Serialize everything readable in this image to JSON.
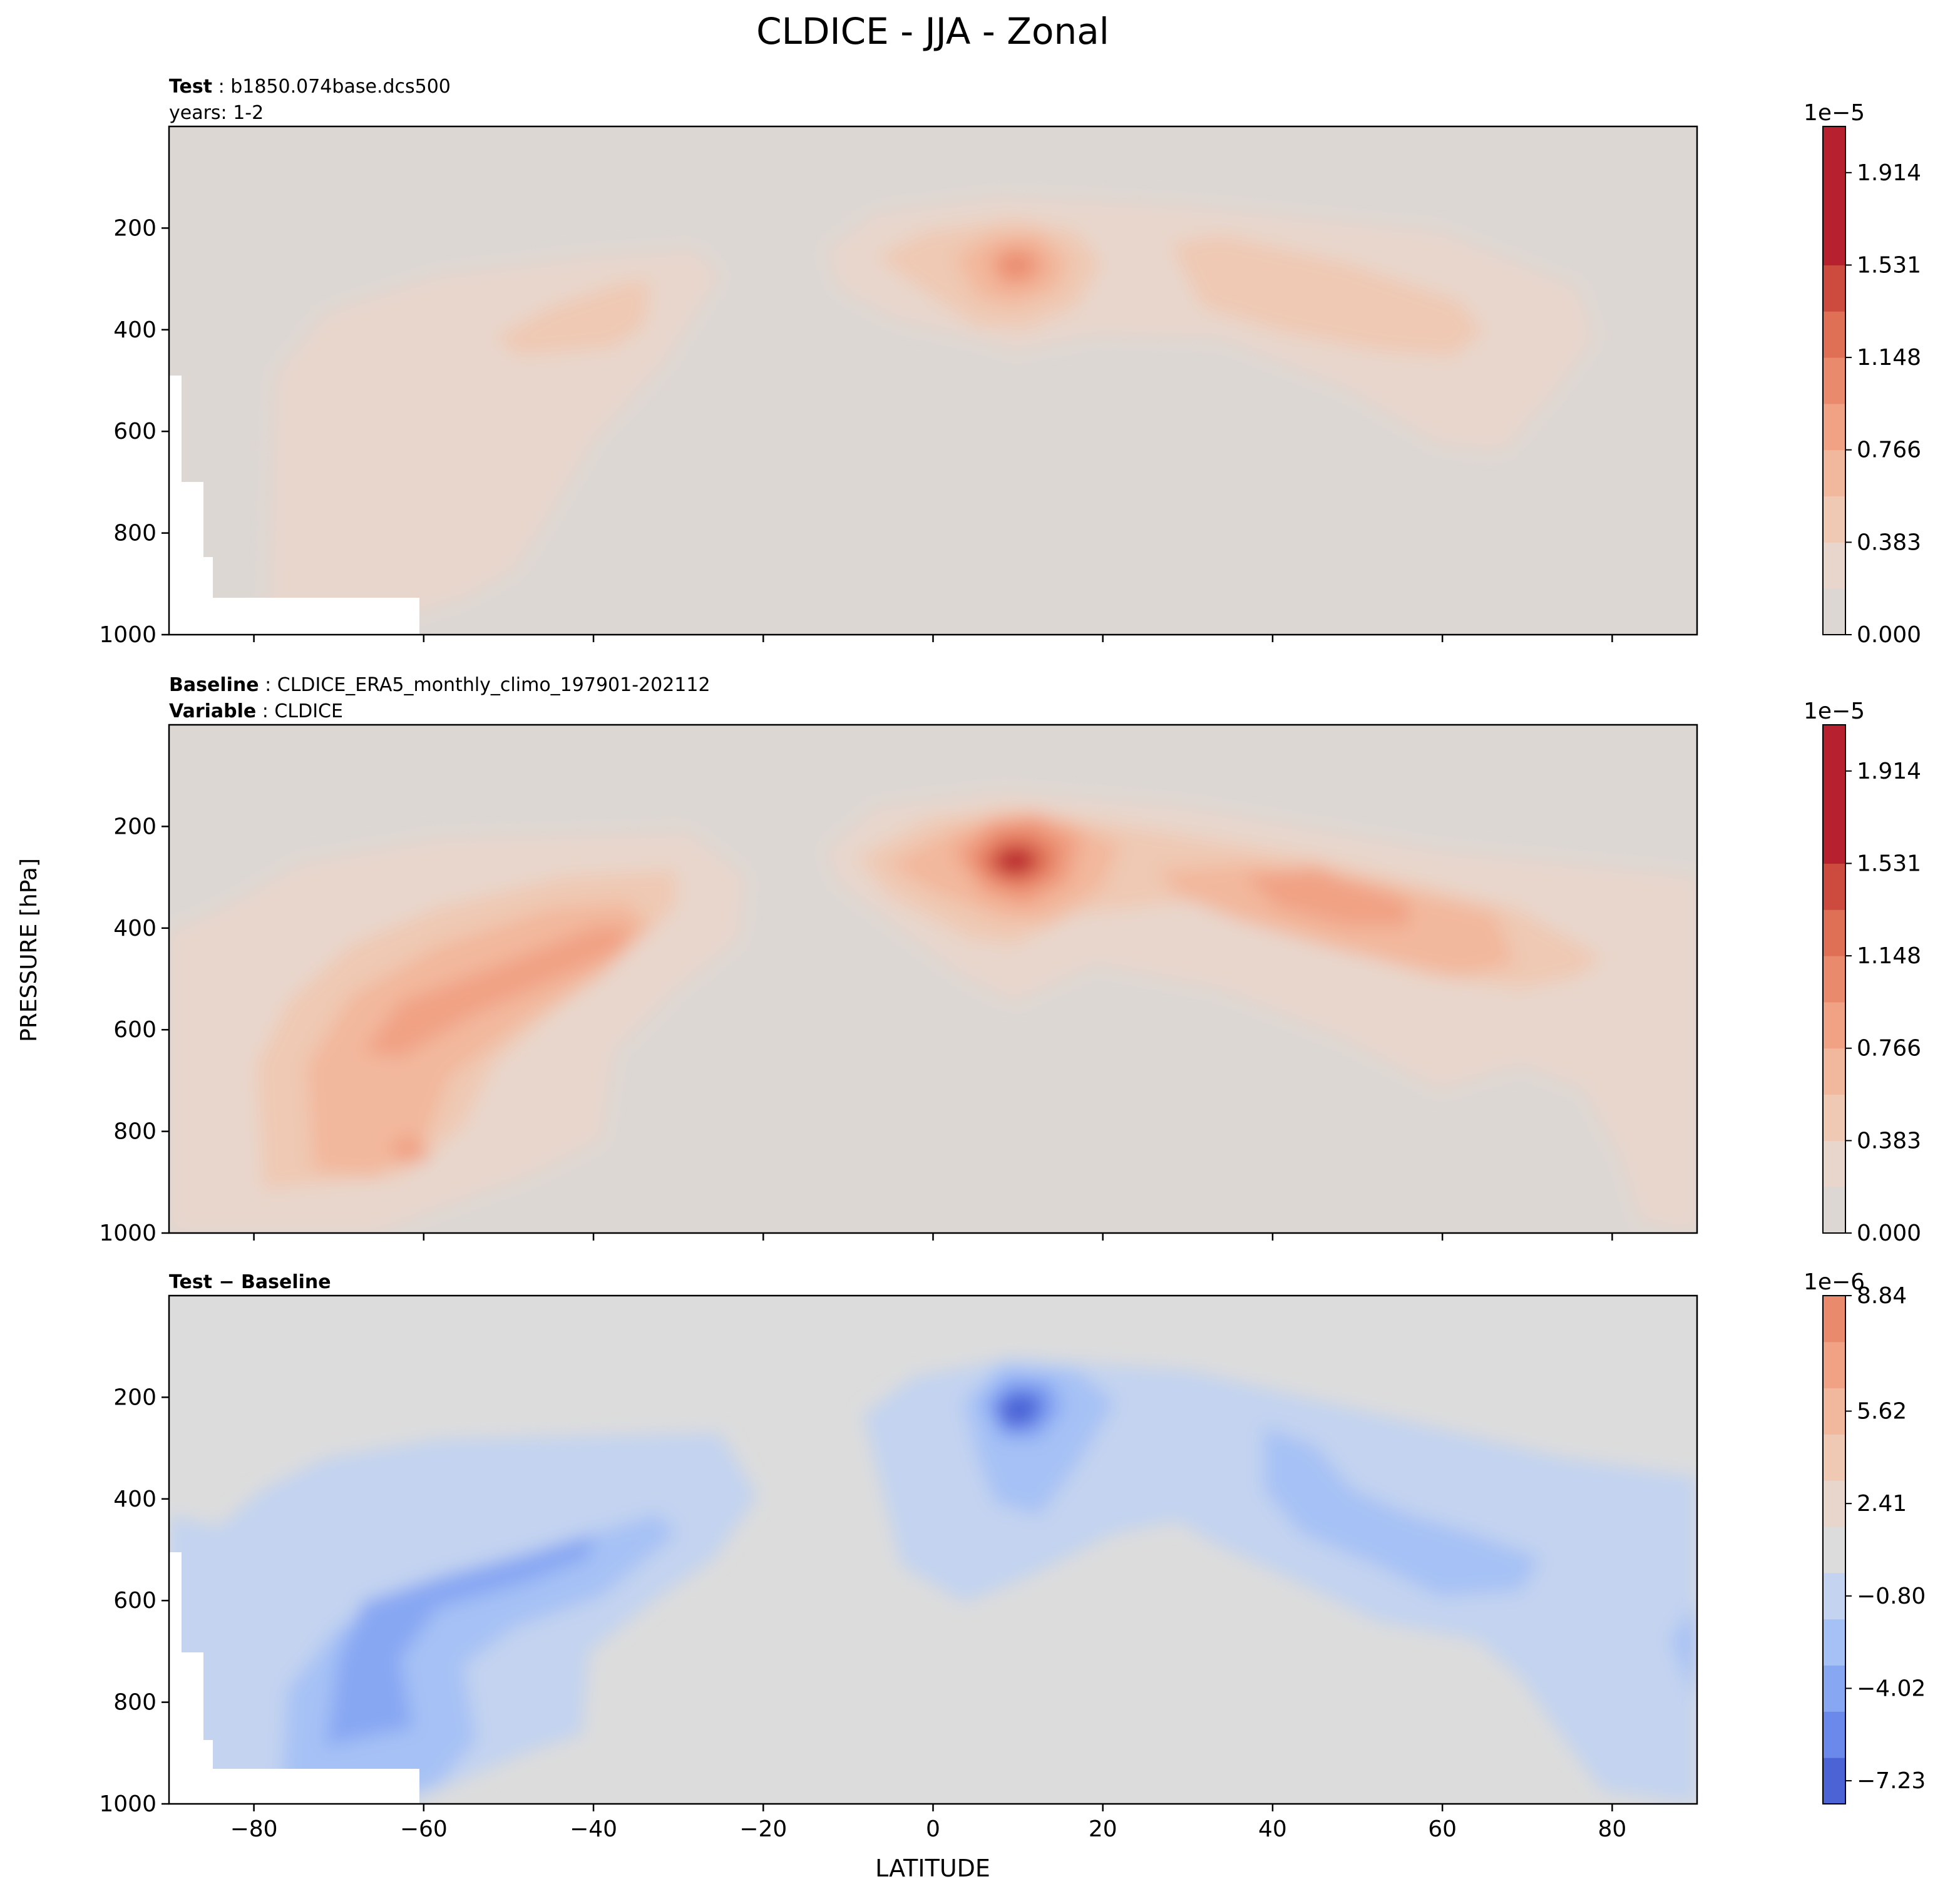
{
  "title": "CLDICE - JJA - Zonal",
  "ylabel": "PRESSURE [hPa]",
  "xlabel": "LATITUDE",
  "colors": {
    "neutral": "#ddd7d3",
    "diff_neutral": "#dcdcdc",
    "warm": [
      "#e8d6cc",
      "#efc9b4",
      "#f2b89d",
      "#f1a285",
      "#e98a6d",
      "#df6f55",
      "#cc4a3e",
      "#b7202e"
    ],
    "cool": [
      "#c3d3f0",
      "#a6c1f5",
      "#88a7f3",
      "#6a89ea",
      "#4c63d6"
    ]
  },
  "chart_data": [
    {
      "type": "contour",
      "panel": "test",
      "header": [
        {
          "bold": "Test",
          "text": "b1850.074base.dcs500"
        },
        {
          "bold": "",
          "text": "years: 1-2"
        }
      ],
      "x_ticks": [
        -80,
        -60,
        -40,
        -20,
        0,
        20,
        40,
        60,
        80
      ],
      "xlim": [
        -90,
        90
      ],
      "y_ticks": [
        200,
        400,
        600,
        800,
        1000
      ],
      "ylim": [
        1000,
        0
      ],
      "colorbar": {
        "exponent": "1e−5",
        "ticks": [
          "0.000",
          "0.383",
          "0.766",
          "1.148",
          "1.531",
          "1.914"
        ],
        "levels": 11
      },
      "features": [
        {
          "name": "equatorial upper max",
          "lat": 8,
          "p": 250,
          "value_1e5": 1.0
        },
        {
          "name": "southern mid-latitude band",
          "lat": -45,
          "p": 400,
          "value_1e5": 0.45
        },
        {
          "name": "northern mid-latitude band",
          "lat": 45,
          "p": 350,
          "value_1e5": 0.55
        }
      ]
    },
    {
      "type": "contour",
      "panel": "baseline",
      "header": [
        {
          "bold": "Baseline",
          "text": "CLDICE_ERA5_monthly_climo_197901-202112"
        },
        {
          "bold": "Variable",
          "text": "CLDICE"
        }
      ],
      "x_ticks": [
        -80,
        -60,
        -40,
        -20,
        0,
        20,
        40,
        60,
        80
      ],
      "xlim": [
        -90,
        90
      ],
      "y_ticks": [
        200,
        400,
        600,
        800,
        1000
      ],
      "ylim": [
        1000,
        0
      ],
      "colorbar": {
        "exponent": "1e−5",
        "ticks": [
          "0.000",
          "0.383",
          "0.766",
          "1.148",
          "1.531",
          "1.914"
        ],
        "levels": 11
      },
      "features": [
        {
          "name": "equatorial upper max",
          "lat": 8,
          "p": 240,
          "value_1e5": 2.0
        },
        {
          "name": "southern mid-latitude band",
          "lat": -50,
          "p": 550,
          "value_1e5": 0.9
        },
        {
          "name": "northern mid-latitude band",
          "lat": 45,
          "p": 350,
          "value_1e5": 0.9
        }
      ]
    },
    {
      "type": "contour",
      "panel": "difference",
      "header": [
        {
          "bold": "Test − Baseline",
          "text": ""
        }
      ],
      "x_ticks": [
        -80,
        -60,
        -40,
        -20,
        0,
        20,
        40,
        60,
        80
      ],
      "xlim": [
        -90,
        90
      ],
      "y_ticks": [
        200,
        400,
        600,
        800,
        1000
      ],
      "ylim": [
        1000,
        0
      ],
      "colorbar": {
        "exponent": "1e−6",
        "ticks": [
          "−7.23",
          "−4.02",
          "−0.80",
          "2.41",
          "5.62",
          "8.84"
        ],
        "levels": 11
      },
      "features": [
        {
          "name": "equatorial upper min",
          "lat": 8,
          "p": 230,
          "value_1e6": -9.0
        },
        {
          "name": "southern negative band",
          "lat": -62,
          "p": 650,
          "value_1e6": -6.0
        },
        {
          "name": "northern negative band",
          "lat": 45,
          "p": 420,
          "value_1e6": -3.0
        }
      ]
    }
  ]
}
